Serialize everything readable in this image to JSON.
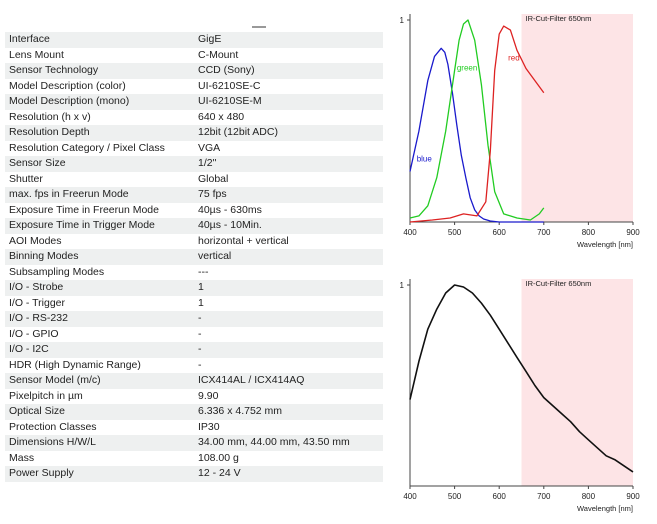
{
  "specs": [
    {
      "key": "Interface",
      "value": "GigE"
    },
    {
      "key": "Lens Mount",
      "value": "C-Mount"
    },
    {
      "key": "Sensor Technology",
      "value": "CCD (Sony)"
    },
    {
      "key": "Model Description (color)",
      "value": "UI-6210SE-C"
    },
    {
      "key": "Model Description (mono)",
      "value": "UI-6210SE-M"
    },
    {
      "key": "Resolution (h x v)",
      "value": "640 x 480"
    },
    {
      "key": "Resolution Depth",
      "value": "12bit (12bit ADC)"
    },
    {
      "key": "Resolution Category / Pixel Class",
      "value": "VGA"
    },
    {
      "key": "Sensor Size",
      "value": "1/2\""
    },
    {
      "key": "Shutter",
      "value": "Global"
    },
    {
      "key": "max. fps in Freerun Mode",
      "value": "75 fps"
    },
    {
      "key": "Exposure Time in Freerun Mode",
      "value": "40µs - 630ms"
    },
    {
      "key": "Exposure Time in Trigger Mode",
      "value": "40µs - 10Min."
    },
    {
      "key": "AOI Modes",
      "value": "horizontal + vertical"
    },
    {
      "key": "Binning Modes",
      "value": "vertical"
    },
    {
      "key": "Subsampling Modes",
      "value": "---"
    },
    {
      "key": "I/O - Strobe",
      "value": "1"
    },
    {
      "key": "I/O - Trigger",
      "value": "1"
    },
    {
      "key": "I/O - RS-232",
      "value": "-"
    },
    {
      "key": "I/O - GPIO",
      "value": "-"
    },
    {
      "key": "I/O - I2C",
      "value": "-"
    },
    {
      "key": "HDR (High Dynamic Range)",
      "value": "-"
    },
    {
      "key": "Sensor Model (m/c)",
      "value": "ICX414AL / ICX414AQ"
    },
    {
      "key": "Pixelpitch in µm",
      "value": "9.90"
    },
    {
      "key": "Optical Size",
      "value": "6.336 x 4.752 mm"
    },
    {
      "key": "Protection Classes",
      "value": "IP30"
    },
    {
      "key": "Dimensions H/W/L",
      "value": "34.00 mm, 44.00 mm, 43.50 mm"
    },
    {
      "key": "Mass",
      "value": "108.00 g"
    },
    {
      "key": "Power Supply",
      "value": "12 - 24 V"
    }
  ],
  "colors": {
    "ir_band": "#fde4e6",
    "blue": "#1a1acc",
    "green": "#22cc22",
    "red": "#dd2222",
    "mono": "#111111"
  },
  "chart_data": [
    {
      "type": "line",
      "annotation": "IR-Cut-Filter 650nm",
      "xlabel": "Wavelength [nm]",
      "ylabel": "",
      "xlim": [
        400,
        900
      ],
      "ylim": [
        0,
        1
      ],
      "xticks": [
        "400",
        "500",
        "600",
        "700",
        "800",
        "900"
      ],
      "yticks": [
        "1"
      ],
      "ir_cut_from": 650,
      "series": [
        {
          "name": "blue",
          "color": "#1a1acc",
          "x": [
            400,
            420,
            440,
            455,
            470,
            478,
            485,
            495,
            505,
            515,
            525,
            535,
            545,
            555,
            565,
            580,
            600,
            640,
            700
          ],
          "y": [
            0.25,
            0.45,
            0.7,
            0.82,
            0.86,
            0.84,
            0.78,
            0.64,
            0.48,
            0.33,
            0.22,
            0.12,
            0.06,
            0.03,
            0.015,
            0.005,
            0,
            0,
            0
          ]
        },
        {
          "name": "green",
          "color": "#22cc22",
          "x": [
            400,
            420,
            440,
            460,
            480,
            500,
            510,
            520,
            530,
            545,
            560,
            575,
            590,
            610,
            640,
            670,
            690,
            700
          ],
          "y": [
            0.02,
            0.03,
            0.08,
            0.22,
            0.45,
            0.75,
            0.9,
            0.98,
            1.0,
            0.9,
            0.68,
            0.38,
            0.15,
            0.04,
            0.02,
            0.01,
            0.04,
            0.07
          ]
        },
        {
          "name": "red",
          "color": "#dd2222",
          "x": [
            400,
            450,
            490,
            520,
            550,
            570,
            580,
            590,
            600,
            610,
            625,
            640,
            660,
            680,
            700
          ],
          "y": [
            0.0,
            0.01,
            0.02,
            0.04,
            0.03,
            0.1,
            0.35,
            0.75,
            0.93,
            0.97,
            0.95,
            0.85,
            0.76,
            0.7,
            0.64
          ]
        }
      ]
    },
    {
      "type": "line",
      "annotation": "IR-Cut-Filter 650nm",
      "xlabel": "Wavelength [nm]",
      "ylabel": "",
      "xlim": [
        400,
        900
      ],
      "ylim": [
        0,
        1
      ],
      "xticks": [
        "400",
        "500",
        "600",
        "700",
        "800",
        "900"
      ],
      "yticks": [
        "1"
      ],
      "ir_cut_from": 650,
      "series": [
        {
          "name": "",
          "color": "#111111",
          "x": [
            400,
            420,
            440,
            460,
            480,
            500,
            520,
            540,
            560,
            580,
            600,
            620,
            640,
            660,
            680,
            700,
            720,
            740,
            760,
            780,
            800,
            820,
            840,
            860,
            880,
            900
          ],
          "y": [
            0.43,
            0.62,
            0.78,
            0.88,
            0.96,
            1.0,
            0.99,
            0.96,
            0.91,
            0.85,
            0.78,
            0.71,
            0.64,
            0.57,
            0.5,
            0.44,
            0.4,
            0.36,
            0.32,
            0.27,
            0.23,
            0.19,
            0.15,
            0.13,
            0.1,
            0.07
          ]
        }
      ]
    }
  ]
}
